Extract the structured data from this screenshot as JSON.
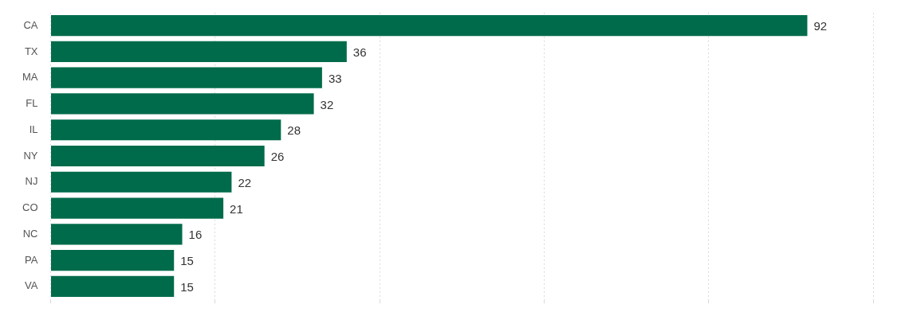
{
  "chart_data": {
    "type": "bar",
    "orientation": "horizontal",
    "categories": [
      "CA",
      "TX",
      "MA",
      "FL",
      "IL",
      "NY",
      "NJ",
      "CO",
      "NC",
      "PA",
      "VA"
    ],
    "values": [
      92,
      36,
      33,
      32,
      28,
      26,
      22,
      21,
      16,
      15,
      15
    ],
    "color": "#006b4a",
    "xlim": [
      0,
      100
    ],
    "xticks": [
      0,
      20,
      40,
      60,
      80,
      100
    ],
    "grid": true,
    "data_labels": true,
    "tick_labels": "y"
  }
}
